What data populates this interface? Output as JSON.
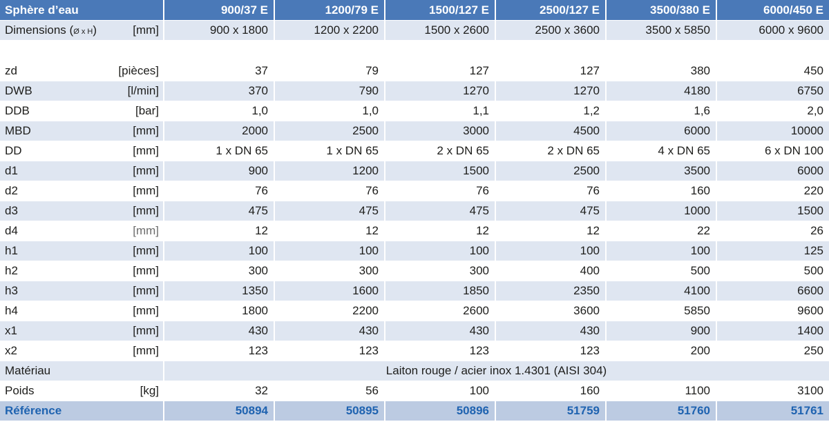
{
  "header": [
    "Sphère d’eau",
    "900/37 E",
    "1200/79 E",
    "1500/127 E",
    "2500/127 E",
    "3500/380 E",
    "6000/450 E"
  ],
  "dimensions": {
    "label": "Dimensions (",
    "label_small": "Ø x H",
    "label_close": ")",
    "unit": "[mm]",
    "values": [
      "900 x 1800",
      "1200 x 2200",
      "1500 x 2600",
      "2500 x 3600",
      "3500 x 5850",
      "6000 x 9600"
    ]
  },
  "rows": [
    {
      "label": "zd",
      "unit": "[pièces]",
      "values": [
        "37",
        "79",
        "127",
        "127",
        "380",
        "450"
      ]
    },
    {
      "label": "DWB",
      "unit": "[l/min]",
      "values": [
        "370",
        "790",
        "1270",
        "1270",
        "4180",
        "6750"
      ]
    },
    {
      "label": "DDB",
      "unit": "[bar]",
      "values": [
        "1,0",
        "1,0",
        "1,1",
        "1,2",
        "1,6",
        "2,0"
      ]
    },
    {
      "label": "MBD",
      "unit": "[mm]",
      "values": [
        "2000",
        "2500",
        "3000",
        "4500",
        "6000",
        "10000"
      ]
    },
    {
      "label": "DD",
      "unit": "[mm]",
      "values": [
        "1 x DN 65",
        "1 x DN 65",
        "2 x DN 65",
        "2 x DN 65",
        "4 x DN 65",
        "6 x DN 100"
      ]
    },
    {
      "label": "d1",
      "unit": "[mm]",
      "values": [
        "900",
        "1200",
        "1500",
        "2500",
        "3500",
        "6000"
      ]
    },
    {
      "label": "d2",
      "unit": "[mm]",
      "values": [
        "76",
        "76",
        "76",
        "76",
        "160",
        "220"
      ]
    },
    {
      "label": "d3",
      "unit": "[mm]",
      "values": [
        "475",
        "475",
        "475",
        "475",
        "1000",
        "1500"
      ]
    },
    {
      "label": "d4",
      "unit": "[mm]",
      "values": [
        "12",
        "12",
        "12",
        "12",
        "22",
        "26"
      ]
    },
    {
      "label": "h1",
      "unit": "[mm]",
      "values": [
        "100",
        "100",
        "100",
        "100",
        "100",
        "125"
      ]
    },
    {
      "label": "h2",
      "unit": "[mm]",
      "values": [
        "300",
        "300",
        "300",
        "400",
        "500",
        "500"
      ]
    },
    {
      "label": "h3",
      "unit": "[mm]",
      "values": [
        "1350",
        "1600",
        "1850",
        "2350",
        "4100",
        "6600"
      ]
    },
    {
      "label": "h4",
      "unit": "[mm]",
      "values": [
        "1800",
        "2200",
        "2600",
        "3600",
        "5850",
        "9600"
      ]
    },
    {
      "label": "x1",
      "unit": "[mm]",
      "values": [
        "430",
        "430",
        "430",
        "430",
        "900",
        "1400"
      ]
    },
    {
      "label": "x2",
      "unit": "[mm]",
      "values": [
        "123",
        "123",
        "123",
        "123",
        "200",
        "250"
      ]
    }
  ],
  "material": {
    "label": "Matériau",
    "value": "Laiton rouge / acier inox 1.4301 (AISI 304)"
  },
  "weight": {
    "label": "Poids",
    "unit": "[kg]",
    "values": [
      "32",
      "56",
      "100",
      "160",
      "1100",
      "3100"
    ]
  },
  "reference": {
    "label": "Référence",
    "values": [
      "50894",
      "50895",
      "50896",
      "51759",
      "51760",
      "51761"
    ]
  },
  "colors": {
    "header": "#4a79b8",
    "light_row": "#dfe6f1",
    "reference_row": "#bccbe2",
    "reference_text": "#1f63b0"
  }
}
